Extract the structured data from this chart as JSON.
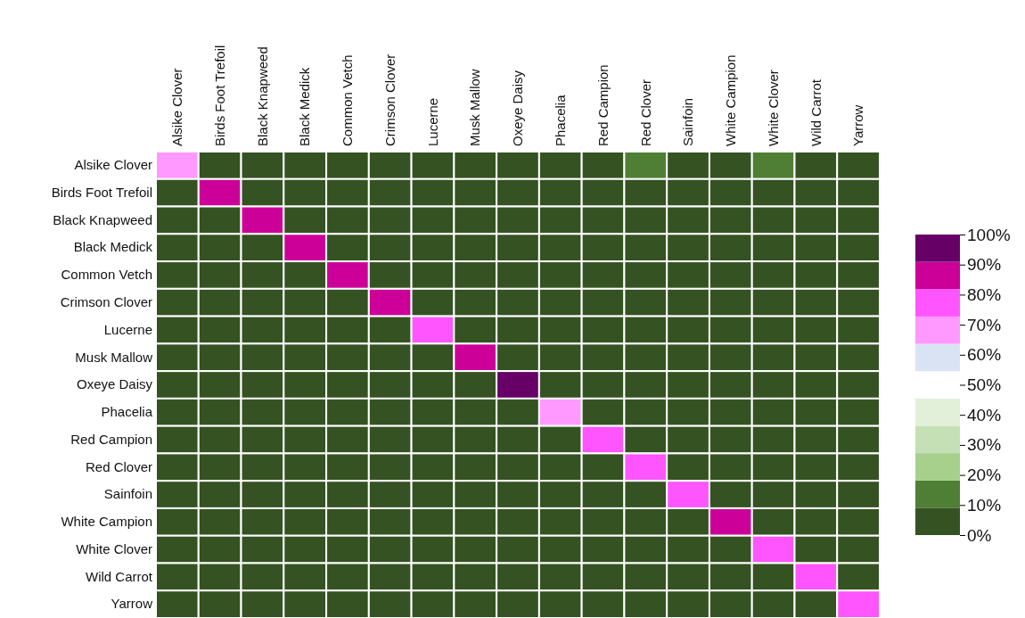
{
  "chart_data": {
    "type": "heatmap",
    "categories": [
      "Alsike Clover",
      "Birds Foot Trefoil",
      "Black Knapweed",
      "Black Medick",
      "Common Vetch",
      "Crimson Clover",
      "Lucerne",
      "Musk Mallow",
      "Oxeye Daisy",
      "Phacelia",
      "Red Campion",
      "Red Clover",
      "Sainfoin",
      "White Campion",
      "White Clover",
      "Wild Carrot",
      "Yarrow"
    ],
    "y_categories": [
      "Alsike Clover",
      "Birds Foot Trefoil",
      "Black Knapweed",
      "Black Medick",
      "Common Vetch",
      "Crimson Clover",
      "Lucerne",
      "Musk Mallow",
      "Oxeye Daisy",
      "Phacelia",
      "Red Campion",
      "Red Clover",
      "Sainfoin",
      "White Campion",
      "White Clover",
      "Wild Carrot",
      "Yarrow"
    ],
    "cells": [
      [
        68,
        5,
        5,
        5,
        5,
        5,
        5,
        5,
        5,
        5,
        5,
        13,
        5,
        5,
        13,
        5,
        5
      ],
      [
        5,
        86,
        5,
        5,
        5,
        5,
        5,
        5,
        5,
        5,
        5,
        5,
        5,
        5,
        5,
        5,
        5
      ],
      [
        5,
        5,
        86,
        5,
        5,
        5,
        5,
        5,
        5,
        5,
        5,
        5,
        5,
        5,
        5,
        5,
        5
      ],
      [
        5,
        5,
        5,
        86,
        5,
        5,
        5,
        5,
        5,
        5,
        5,
        5,
        5,
        5,
        5,
        5,
        5
      ],
      [
        5,
        5,
        5,
        5,
        86,
        5,
        5,
        5,
        5,
        5,
        5,
        5,
        5,
        5,
        5,
        5,
        5
      ],
      [
        5,
        5,
        5,
        5,
        5,
        86,
        5,
        5,
        5,
        5,
        5,
        5,
        5,
        5,
        5,
        5,
        5
      ],
      [
        5,
        5,
        5,
        5,
        5,
        5,
        77,
        5,
        5,
        5,
        5,
        5,
        5,
        5,
        5,
        5,
        5
      ],
      [
        5,
        5,
        5,
        5,
        5,
        5,
        5,
        86,
        5,
        5,
        5,
        5,
        5,
        5,
        5,
        5,
        5
      ],
      [
        5,
        5,
        5,
        5,
        5,
        5,
        5,
        5,
        95,
        5,
        5,
        5,
        5,
        5,
        5,
        5,
        5
      ],
      [
        5,
        5,
        5,
        5,
        5,
        5,
        5,
        5,
        5,
        68,
        5,
        5,
        5,
        5,
        5,
        5,
        5
      ],
      [
        5,
        5,
        5,
        5,
        5,
        5,
        5,
        5,
        5,
        5,
        77,
        5,
        5,
        5,
        5,
        5,
        5
      ],
      [
        5,
        5,
        5,
        5,
        5,
        5,
        5,
        5,
        5,
        5,
        5,
        77,
        5,
        5,
        5,
        5,
        5
      ],
      [
        5,
        5,
        5,
        5,
        5,
        5,
        5,
        5,
        5,
        5,
        5,
        5,
        77,
        5,
        5,
        5,
        5
      ],
      [
        5,
        5,
        5,
        5,
        5,
        5,
        5,
        5,
        5,
        5,
        5,
        5,
        5,
        86,
        5,
        5,
        5
      ],
      [
        5,
        5,
        5,
        5,
        5,
        5,
        5,
        5,
        5,
        5,
        5,
        5,
        5,
        5,
        77,
        5,
        5
      ],
      [
        5,
        5,
        5,
        5,
        5,
        5,
        5,
        5,
        5,
        5,
        5,
        5,
        5,
        5,
        5,
        77,
        5
      ],
      [
        5,
        5,
        5,
        5,
        5,
        5,
        5,
        5,
        5,
        5,
        5,
        5,
        5,
        5,
        5,
        5,
        77
      ]
    ],
    "clim": [
      0,
      100
    ],
    "cticks": [
      {
        "value": 0,
        "label": "0%"
      },
      {
        "value": 10,
        "label": "10%"
      },
      {
        "value": 20,
        "label": "20%"
      },
      {
        "value": 30,
        "label": "30%"
      },
      {
        "value": 40,
        "label": "40%"
      },
      {
        "value": 50,
        "label": "50%"
      },
      {
        "value": 60,
        "label": "60%"
      },
      {
        "value": 70,
        "label": "70%"
      },
      {
        "value": 80,
        "label": "80%"
      },
      {
        "value": 90,
        "label": "90%"
      },
      {
        "value": 100,
        "label": "100%"
      }
    ]
  }
}
